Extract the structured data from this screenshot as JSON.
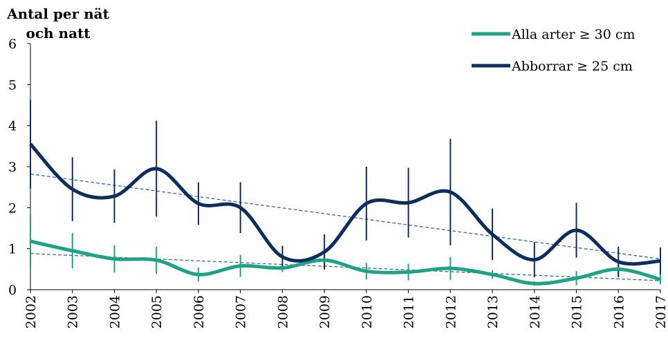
{
  "chart_data": {
    "type": "line",
    "ylabel": "Antal per nät och natt",
    "categories": [
      "2002",
      "2003",
      "2004",
      "2005",
      "2006",
      "2007",
      "2008",
      "2009",
      "2010",
      "2011",
      "2012",
      "2013",
      "2014",
      "2015",
      "2016",
      "2017"
    ],
    "ylim": [
      0,
      6
    ],
    "yticks": [
      0,
      1,
      2,
      3,
      4,
      5,
      6
    ],
    "series": [
      {
        "name": "Alla arter ≥ 30 cm",
        "color": "#1fa283",
        "values": [
          1.18,
          0.95,
          0.75,
          0.72,
          0.37,
          0.58,
          0.53,
          0.72,
          0.45,
          0.43,
          0.52,
          0.37,
          0.15,
          0.28,
          0.5,
          0.25
        ],
        "errors": [
          0.65,
          0.43,
          0.33,
          0.33,
          0.17,
          0.27,
          0.1,
          0.2,
          0.2,
          0.2,
          0.28,
          0.1,
          0.05,
          0.17,
          0.2,
          0.12
        ],
        "trendline": [
          0.88,
          0.22
        ],
        "trend_color": "#3a66a8"
      },
      {
        "name": "Abborrar ≥ 25 cm",
        "color": "#0d2d5c",
        "values": [
          3.55,
          2.45,
          2.28,
          2.95,
          2.1,
          2.0,
          0.8,
          0.92,
          2.1,
          2.12,
          2.38,
          1.35,
          0.73,
          1.45,
          0.68,
          0.7
        ],
        "errors": [
          1.08,
          0.78,
          0.65,
          1.17,
          0.52,
          0.62,
          0.27,
          0.43,
          0.9,
          0.85,
          1.3,
          0.63,
          0.43,
          0.67,
          0.37,
          0.33
        ],
        "trendline": [
          2.82,
          0.75
        ],
        "trend_color": "#3a66a8"
      }
    ]
  }
}
